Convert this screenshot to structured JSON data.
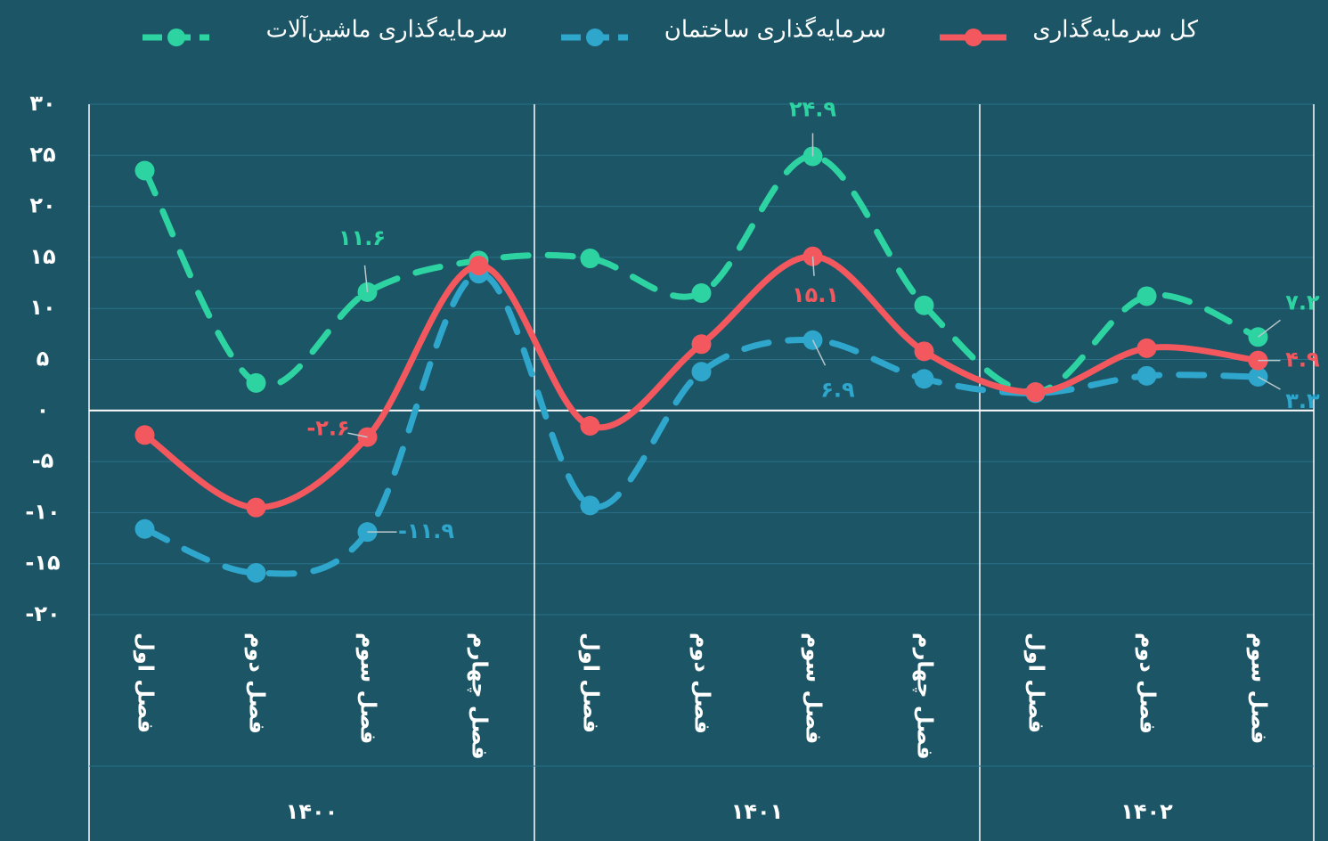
{
  "chart_data": {
    "type": "line",
    "groups": [
      {
        "label": "۱۴۰۰",
        "categories": [
          "فصل اول",
          "فصل دوم",
          "فصل سوم",
          "فصل چهارم"
        ]
      },
      {
        "label": "۱۴۰۱",
        "categories": [
          "فصل اول",
          "فصل دوم",
          "فصل سوم",
          "فصل چهارم"
        ]
      },
      {
        "label": "۱۴۰۲",
        "categories": [
          "فصل اول",
          "فصل دوم",
          "فصل سوم"
        ]
      }
    ],
    "series": [
      {
        "name": "کل سرمایه‌گذاری",
        "color": "#f4585f",
        "dashed": false,
        "values": [
          -2.4,
          -9.5,
          -2.6,
          14.2,
          -1.5,
          6.5,
          15.1,
          5.8,
          1.8,
          6.1,
          4.9
        ],
        "value_labels": [
          null,
          null,
          "-۲.۶",
          null,
          null,
          null,
          "۱۵.۱",
          null,
          null,
          null,
          "۴.۹"
        ]
      },
      {
        "name": "سرمایه‌گذاری ساختمان",
        "color": "#2fa7cc",
        "dashed": true,
        "values": [
          -11.6,
          -15.9,
          -11.9,
          13.4,
          -9.3,
          3.8,
          6.9,
          3.1,
          1.7,
          3.4,
          3.3
        ],
        "value_labels": [
          null,
          null,
          "-۱۱.۹",
          null,
          null,
          null,
          "۶.۹",
          null,
          null,
          null,
          "۳.۳"
        ]
      },
      {
        "name": "سرمایه‌گذاری ماشین‌آلات",
        "color": "#2ed3a2",
        "dashed": true,
        "values": [
          23.5,
          2.7,
          11.6,
          14.7,
          14.9,
          11.5,
          24.9,
          10.3,
          1.8,
          11.2,
          7.2
        ],
        "value_labels": [
          null,
          null,
          "۱۱.۶",
          null,
          null,
          null,
          "۲۴.۹",
          null,
          null,
          null,
          "۷.۲"
        ]
      }
    ],
    "ylim": [
      -20,
      30
    ],
    "yticks": [
      {
        "value": 30,
        "label": "۳۰"
      },
      {
        "value": 25,
        "label": "۲۵"
      },
      {
        "value": 20,
        "label": "۲۰"
      },
      {
        "value": 15,
        "label": "۱۵"
      },
      {
        "value": 10,
        "label": "۱۰"
      },
      {
        "value": 5,
        "label": "۵"
      },
      {
        "value": 0,
        "label": "۰"
      },
      {
        "value": -5,
        "label": "-۵"
      },
      {
        "value": -10,
        "label": "-۱۰"
      },
      {
        "value": -15,
        "label": "-۱۵"
      },
      {
        "value": -20,
        "label": "-۲۰"
      }
    ],
    "grid": true
  }
}
